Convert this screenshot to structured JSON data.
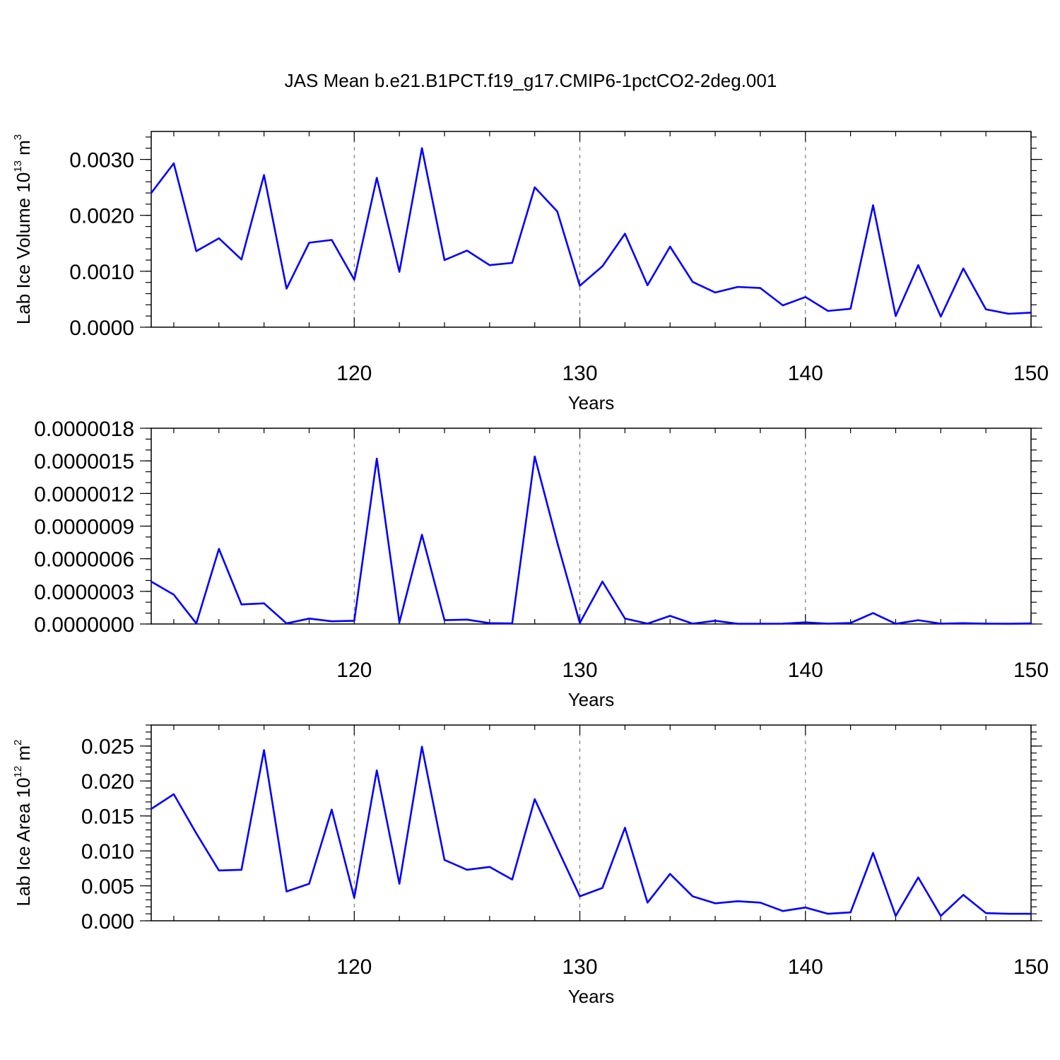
{
  "title": "JAS Mean b.e21.B1PCT.f19_g17.CMIP6-1pctCO2-2deg.001",
  "colors": {
    "line": "#0000ff",
    "frame": "#000000",
    "grid": "#666666"
  },
  "chart_data": [
    {
      "type": "line",
      "xlabel": "Years",
      "ylabel": "Lab Ice Volume 10",
      "ylabel_sup": "13",
      "ylabel_unit": " m",
      "ylabel_unit_sup": "3",
      "xlim": [
        111,
        150
      ],
      "ylim": [
        0,
        0.0035
      ],
      "x_ticks": [
        120,
        130,
        140,
        150
      ],
      "y_ticks": [
        0.0,
        0.001,
        0.002,
        0.003
      ],
      "y_tick_labels": [
        "0.0000",
        "0.0010",
        "0.0020",
        "0.0030"
      ],
      "y_minor_step": 0.0002,
      "grid": "vertical dashed at major x ticks",
      "x": [
        111,
        112,
        113,
        114,
        115,
        116,
        117,
        118,
        119,
        120,
        121,
        122,
        123,
        124,
        125,
        126,
        127,
        128,
        129,
        130,
        131,
        132,
        133,
        134,
        135,
        136,
        137,
        138,
        139,
        140,
        141,
        142,
        143,
        144,
        145,
        146,
        147,
        148,
        149,
        150
      ],
      "values": [
        0.0024,
        0.00293,
        0.00136,
        0.00159,
        0.00121,
        0.00272,
        0.00069,
        0.00151,
        0.00156,
        0.00085,
        0.00267,
        0.00099,
        0.0032,
        0.0012,
        0.00137,
        0.00111,
        0.00115,
        0.0025,
        0.00207,
        0.00074,
        0.00109,
        0.00167,
        0.00075,
        0.00144,
        0.00081,
        0.00062,
        0.00072,
        0.0007,
        0.00039,
        0.00054,
        0.00029,
        0.00033,
        0.00218,
        0.0002,
        0.00111,
        0.00019,
        0.00105,
        0.00032,
        0.00024,
        0.00026
      ]
    },
    {
      "type": "line",
      "xlabel": "Years",
      "ylabel": "",
      "xlim": [
        111,
        150
      ],
      "ylim": [
        0,
        1.8e-06
      ],
      "x_ticks": [
        120,
        130,
        140,
        150
      ],
      "y_ticks": [
        0.0,
        3e-07,
        6e-07,
        9e-07,
        1.2e-06,
        1.5e-06,
        1.8e-06
      ],
      "y_tick_labels": [
        "0.0000000",
        "0.0000003",
        "0.0000006",
        "0.0000009",
        "0.0000012",
        "0.0000015",
        "0.0000018"
      ],
      "y_minor_step": 1e-07,
      "grid": "vertical dashed at major x ticks",
      "x": [
        111,
        112,
        113,
        114,
        115,
        116,
        117,
        118,
        119,
        120,
        121,
        122,
        123,
        124,
        125,
        126,
        127,
        128,
        129,
        130,
        131,
        132,
        133,
        134,
        135,
        136,
        137,
        138,
        139,
        140,
        141,
        142,
        143,
        144,
        145,
        146,
        147,
        148,
        149,
        150
      ],
      "values": [
        3.9e-07,
        2.7e-07,
        5e-09,
        6.9e-07,
        1.8e-07,
        1.9e-07,
        5e-09,
        5e-08,
        2.5e-08,
        3e-08,
        1.52e-06,
        1.5e-08,
        8.2e-07,
        3.5e-08,
        4e-08,
        8e-09,
        5e-09,
        1.54e-06,
        7.5e-07,
        1e-08,
        3.9e-07,
        5e-08,
        3e-09,
        7.5e-08,
        3e-09,
        3e-08,
        2e-09,
        2e-09,
        3e-09,
        1.5e-08,
        3e-09,
        1e-08,
        1e-07,
        2e-09,
        3.5e-08,
        3e-09,
        8e-09,
        3e-09,
        2e-09,
        5e-09
      ]
    },
    {
      "type": "line",
      "xlabel": "Years",
      "ylabel": "Lab Ice Area 10",
      "ylabel_sup": "12",
      "ylabel_unit": " m",
      "ylabel_unit_sup": "2",
      "xlim": [
        111,
        150
      ],
      "ylim": [
        0,
        0.028
      ],
      "x_ticks": [
        120,
        130,
        140,
        150
      ],
      "y_ticks": [
        0.0,
        0.005,
        0.01,
        0.015,
        0.02,
        0.025
      ],
      "y_tick_labels": [
        "0.000",
        "0.005",
        "0.010",
        "0.015",
        "0.020",
        "0.025"
      ],
      "y_minor_step": 0.001,
      "grid": "vertical dashed at major x ticks",
      "x": [
        111,
        112,
        113,
        114,
        115,
        116,
        117,
        118,
        119,
        120,
        121,
        122,
        123,
        124,
        125,
        126,
        127,
        128,
        129,
        130,
        131,
        132,
        133,
        134,
        135,
        136,
        137,
        138,
        139,
        140,
        141,
        142,
        143,
        144,
        145,
        146,
        147,
        148,
        149,
        150
      ],
      "values": [
        0.016,
        0.0181,
        0.0125,
        0.0072,
        0.0073,
        0.0244,
        0.0042,
        0.0053,
        0.0159,
        0.0033,
        0.0215,
        0.0053,
        0.0249,
        0.0087,
        0.0073,
        0.0077,
        0.0059,
        0.0174,
        0.0104,
        0.0035,
        0.0047,
        0.0133,
        0.0026,
        0.0067,
        0.0035,
        0.0025,
        0.0028,
        0.0026,
        0.0014,
        0.0019,
        0.001,
        0.0012,
        0.0097,
        0.0007,
        0.0062,
        0.0007,
        0.0037,
        0.0011,
        0.001,
        0.001
      ]
    }
  ]
}
